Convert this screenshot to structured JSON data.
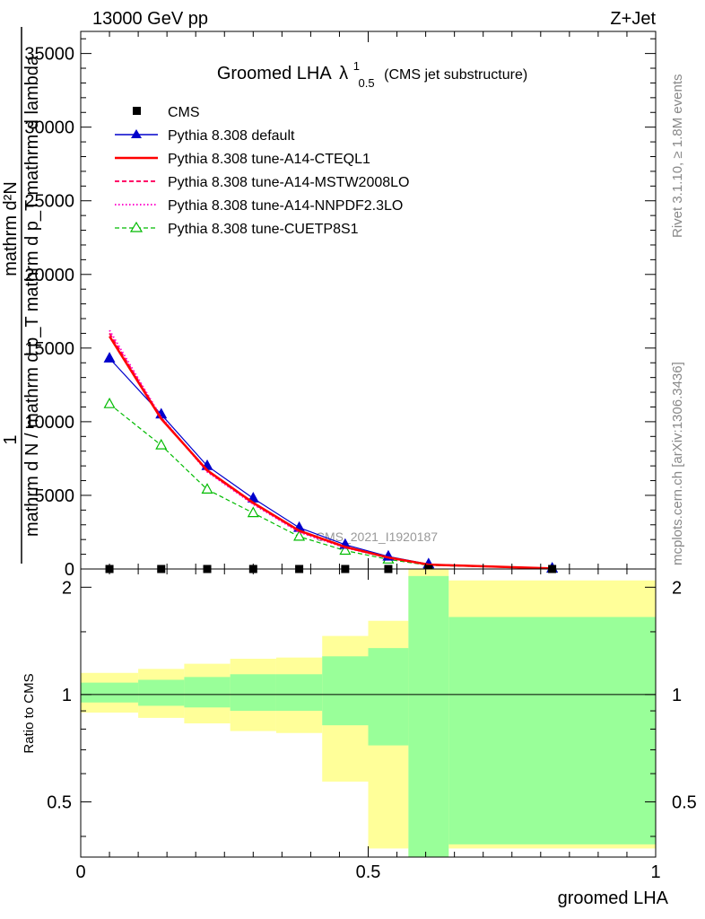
{
  "header": {
    "energy": "13000 GeV pp",
    "process": "Z+Jet"
  },
  "side_labels": {
    "rivet": "Rivet 3.1.10, ≥ 1.8M events",
    "mcplots": "mcplots.cern.ch [arXiv:1306.3436]"
  },
  "colors": {
    "cms": "#000000",
    "default": "#0000cc",
    "cteql1": "#ff0000",
    "mstw": "#ff0066",
    "nnpdf": "#ff00cc",
    "cuetp8s1": "#00bb00",
    "band_inner": "#99ff99",
    "band_outer": "#ffff99"
  },
  "chart_data": [
    {
      "type": "line",
      "title": "Groomed LHA",
      "title_symbol": "λ",
      "title_sup": "1",
      "title_sub": "0.5",
      "title_note": "(CMS jet substructure)",
      "ylabel_lines": [
        "mathrm d²N",
        "1",
        "mathrm d N / mathrm d p_T mathrm d p_T mathrm d lambda"
      ],
      "xlim": [
        0,
        1
      ],
      "ylim": [
        0,
        36500
      ],
      "yticks": [
        0,
        5000,
        10000,
        15000,
        20000,
        25000,
        30000,
        35000
      ],
      "ytick_labels": [
        "0",
        "5000",
        "10000",
        "15000",
        "20000",
        "25000",
        "30000",
        "35000"
      ],
      "watermark": "CMS_2021_I1920187",
      "legend_position": "top-left",
      "series": [
        {
          "name": "CMS",
          "marker": "square",
          "x": [
            0.05,
            0.14,
            0.22,
            0.3,
            0.38,
            0.46,
            0.535,
            0.605,
            0.82
          ],
          "y": [
            0,
            0,
            0,
            0,
            0,
            0,
            0,
            0,
            0
          ]
        },
        {
          "name": "Pythia 8.308 default",
          "marker": "filled-triangle",
          "style": "solid",
          "x": [
            0.05,
            0.14,
            0.22,
            0.3,
            0.38,
            0.46,
            0.535,
            0.605,
            0.82
          ],
          "y": [
            14300,
            10500,
            7000,
            4800,
            2800,
            1650,
            850,
            330,
            40
          ]
        },
        {
          "name": "Pythia 8.308 tune-A14-CTEQL1",
          "style": "solid-thick",
          "x": [
            0.05,
            0.14,
            0.22,
            0.3,
            0.38,
            0.46,
            0.535,
            0.605,
            0.82
          ],
          "y": [
            15800,
            10200,
            6700,
            4500,
            2600,
            1500,
            780,
            300,
            35
          ]
        },
        {
          "name": "Pythia 8.308 tune-A14-MSTW2008LO",
          "style": "dashed",
          "x": [
            0.05,
            0.14,
            0.22,
            0.3,
            0.38,
            0.46,
            0.535,
            0.605,
            0.82
          ],
          "y": [
            16000,
            10250,
            6650,
            4450,
            2550,
            1480,
            770,
            300,
            35
          ]
        },
        {
          "name": "Pythia 8.308 tune-A14-NNPDF2.3LO",
          "style": "dotted",
          "x": [
            0.05,
            0.14,
            0.22,
            0.3,
            0.38,
            0.46,
            0.535,
            0.605,
            0.82
          ],
          "y": [
            16200,
            10300,
            6600,
            4400,
            2500,
            1450,
            760,
            290,
            35
          ]
        },
        {
          "name": "Pythia 8.308 tune-CUETP8S1",
          "marker": "open-triangle",
          "style": "dashed",
          "x": [
            0.05,
            0.14,
            0.22,
            0.3,
            0.38,
            0.46,
            0.535,
            0.605,
            0.82
          ],
          "y": [
            11200,
            8400,
            5400,
            3800,
            2200,
            1250,
            650,
            250,
            30
          ]
        }
      ]
    },
    {
      "type": "area",
      "ylabel": "Ratio to CMS",
      "xlabel": "groomed LHA",
      "xlim": [
        0,
        1
      ],
      "ylim": [
        0.35,
        2.25
      ],
      "xticks": [
        0,
        0.5,
        1
      ],
      "xtick_labels": [
        "0",
        "0.5",
        "1"
      ],
      "yticks": [
        0.5,
        1,
        2
      ],
      "ytick_labels": [
        "0.5",
        "1",
        "2"
      ],
      "reference_line": 1,
      "bin_edges": [
        0,
        0.1,
        0.18,
        0.26,
        0.34,
        0.42,
        0.5,
        0.57,
        0.64,
        1.0
      ],
      "inner_band": {
        "low": [
          0.95,
          0.93,
          0.92,
          0.9,
          0.9,
          0.82,
          0.72,
          0.3,
          0.38
        ],
        "high": [
          1.08,
          1.1,
          1.12,
          1.14,
          1.14,
          1.28,
          1.35,
          2.15,
          1.65
        ]
      },
      "outer_band": {
        "low": [
          0.89,
          0.86,
          0.83,
          0.79,
          0.78,
          0.57,
          0.37,
          0.3,
          0.37
        ],
        "high": [
          1.15,
          1.18,
          1.22,
          1.26,
          1.27,
          1.46,
          1.61,
          2.4,
          2.09
        ]
      }
    }
  ]
}
